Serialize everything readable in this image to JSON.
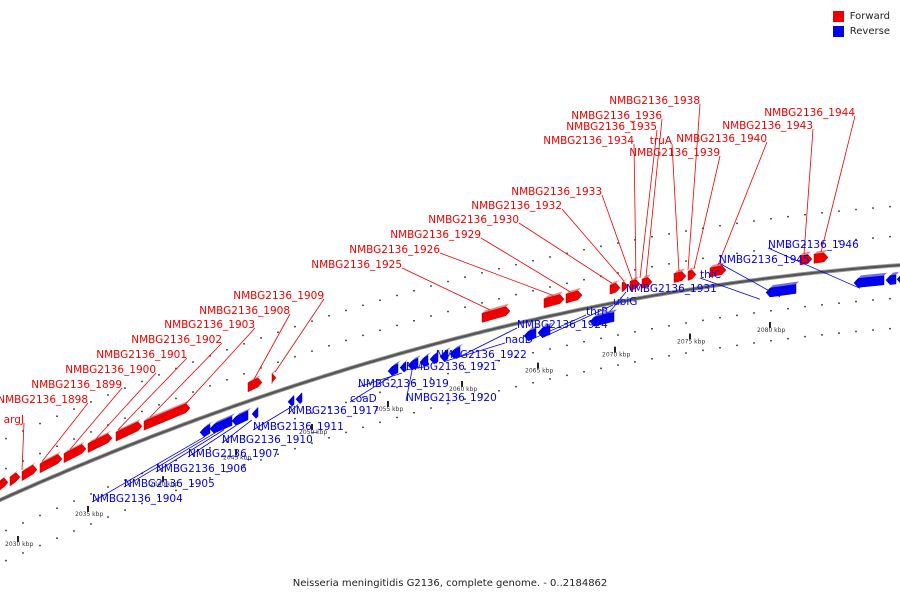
{
  "caption": "Neisseria meningitidis G2136, complete genome. - 0..2184862",
  "legend": [
    {
      "label": "Forward",
      "color": "#ee0000"
    },
    {
      "label": "Reverse",
      "color": "#0000ee"
    }
  ],
  "colors": {
    "forward": "#ee0000",
    "reverse": "#0000ee",
    "backbone": "#777777"
  },
  "ticks": [
    "2030 kbp",
    "2035 kbp",
    "2040 kbp",
    "2045 kbp",
    "2050 kbp",
    "2055 kbp",
    "2060 kbp",
    "2065 kbp",
    "2070 kbp",
    "2075 kbp",
    "2080 kbp"
  ],
  "forward_labels": [
    "argJ",
    "NMBG2136_1898",
    "NMBG2136_1899",
    "NMBG2136_1900",
    "NMBG2136_1901",
    "NMBG2136_1902",
    "NMBG2136_1903",
    "NMBG2136_1908",
    "NMBG2136_1909",
    "NMBG2136_1925",
    "NMBG2136_1926",
    "NMBG2136_1929",
    "NMBG2136_1930",
    "NMBG2136_1932",
    "NMBG2136_1933",
    "NMBG2136_1934",
    "NMBG2136_1935",
    "NMBG2136_1936",
    "NMBG2136_1938",
    "truA",
    "NMBG2136_1939",
    "NMBG2136_1940",
    "NMBG2136_1943",
    "NMBG2136_1944"
  ],
  "reverse_labels": [
    "NMBG2136_1904",
    "NMBG2136_1905",
    "NMBG2136_1906",
    "NMBG2136_1907",
    "NMBG2136_1910",
    "NMBG2136_1911",
    "NMBG2136_1917",
    "coaD",
    "NMBG2136_1919",
    "NMBG2136_1920",
    "NMBG2136_1921",
    "NMBG2136_1922",
    "nadD",
    "NMBG2136_1924",
    "thrB",
    "ubiG",
    "NMBG2136_1931",
    "thiC",
    "NMBG2136_1945",
    "NMBG2136_1946"
  ]
}
